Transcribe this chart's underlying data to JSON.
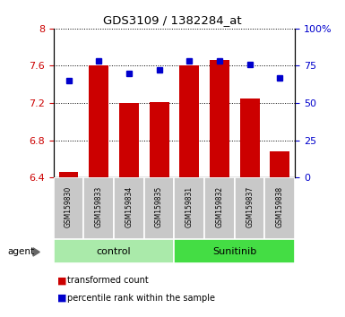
{
  "title": "GDS3109 / 1382284_at",
  "samples": [
    "GSM159830",
    "GSM159833",
    "GSM159834",
    "GSM159835",
    "GSM159831",
    "GSM159832",
    "GSM159837",
    "GSM159838"
  ],
  "transformed_count": [
    6.46,
    7.6,
    7.2,
    7.21,
    7.6,
    7.66,
    7.25,
    6.68
  ],
  "percentile_rank": [
    65,
    78,
    70,
    72,
    78,
    78,
    76,
    67
  ],
  "ylim_left": [
    6.4,
    8.0
  ],
  "ylim_right": [
    0,
    100
  ],
  "yticks_left": [
    6.4,
    6.8,
    7.2,
    7.6,
    8.0
  ],
  "yticks_right": [
    0,
    25,
    50,
    75,
    100
  ],
  "ytick_labels_left": [
    "6.4",
    "6.8",
    "7.2",
    "7.6",
    "8"
  ],
  "ytick_labels_right": [
    "0",
    "25",
    "50",
    "75",
    "100%"
  ],
  "groups": [
    {
      "label": "control",
      "indices": [
        0,
        1,
        2,
        3
      ],
      "color": "#aaeaaa"
    },
    {
      "label": "Sunitinib",
      "indices": [
        4,
        5,
        6,
        7
      ],
      "color": "#44dd44"
    }
  ],
  "bar_color": "#cc0000",
  "dot_color": "#0000cc",
  "bar_baseline": 6.4,
  "left_axis_color": "#cc0000",
  "right_axis_color": "#0000cc",
  "tick_label_bg": "#c8c8c8",
  "agent_label": "agent"
}
